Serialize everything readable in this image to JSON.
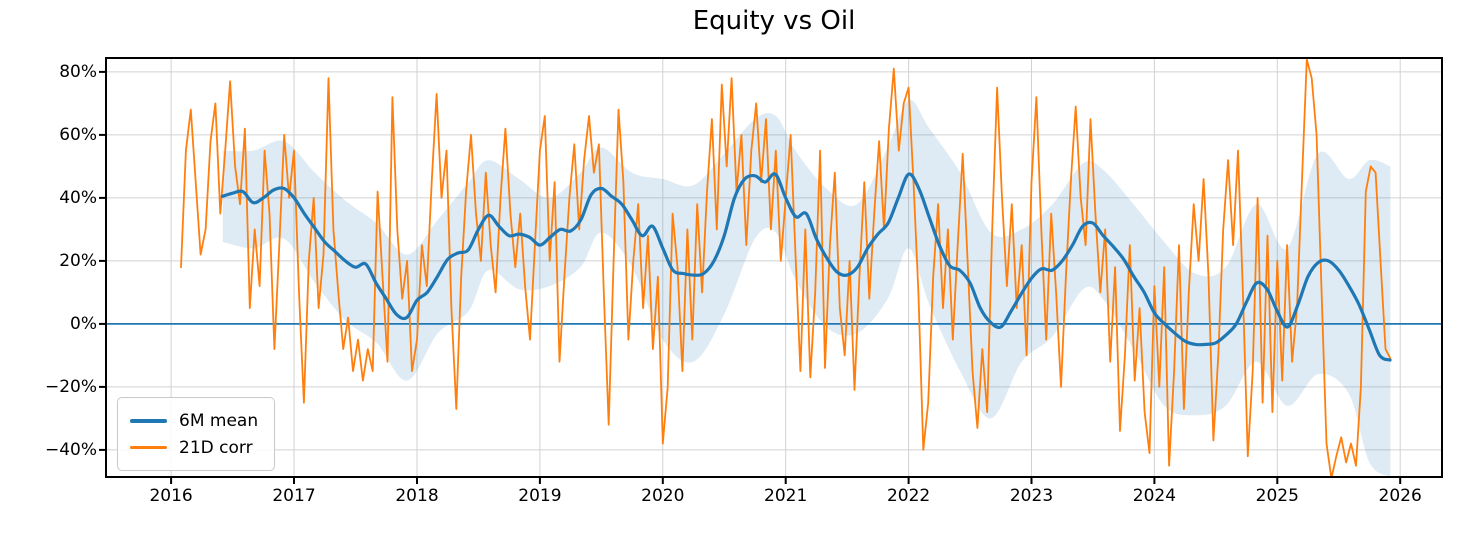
{
  "title": "Equity vs Oil",
  "legend": {
    "entries": [
      {
        "label": "6M mean",
        "color": "#1f77b4",
        "thickness": 4
      },
      {
        "label": "21D corr",
        "color": "#ff7f0e",
        "thickness": 3
      }
    ]
  },
  "axes": {
    "x_ticks": [
      {
        "value": 2016,
        "label": "2016"
      },
      {
        "value": 2017,
        "label": "2017"
      },
      {
        "value": 2018,
        "label": "2018"
      },
      {
        "value": 2019,
        "label": "2019"
      },
      {
        "value": 2020,
        "label": "2020"
      },
      {
        "value": 2021,
        "label": "2021"
      },
      {
        "value": 2022,
        "label": "2022"
      },
      {
        "value": 2023,
        "label": "2023"
      },
      {
        "value": 2024,
        "label": "2024"
      },
      {
        "value": 2025,
        "label": "2025"
      },
      {
        "value": 2026,
        "label": "2026"
      }
    ],
    "y_ticks": [
      {
        "value": 80,
        "label": "80%"
      },
      {
        "value": 60,
        "label": "60%"
      },
      {
        "value": 40,
        "label": "40%"
      },
      {
        "value": 20,
        "label": "20%"
      },
      {
        "value": 0,
        "label": "0%"
      },
      {
        "value": -20,
        "label": "−20%"
      },
      {
        "value": -40,
        "label": "−40%"
      }
    ],
    "grid_color": "#d2d2d2",
    "spine_color": "#000000"
  },
  "chart_data": {
    "type": "line",
    "title": "Equity vs Oil",
    "xlabel": "",
    "ylabel": "",
    "x_unit": "decimal_year",
    "y_unit": "percent",
    "xlim": [
      2015.47,
      2026.34
    ],
    "ylim": [
      -48.6,
      84.4
    ],
    "grid": true,
    "legend_position": "lower left",
    "zero_line": {
      "y": 0,
      "color": "#1f77b4"
    },
    "series": [
      {
        "name": "6M mean",
        "color": "#1f77b4",
        "x_start": 2016.4167,
        "x_step": 0.083333,
        "values": [
          40.5,
          41.5,
          42,
          38.5,
          40,
          42.5,
          43,
          40,
          35,
          30.5,
          26,
          23,
          20,
          18,
          19,
          13,
          8,
          3,
          2,
          7.5,
          10,
          15,
          20.5,
          22.5,
          23.5,
          30,
          34.5,
          31,
          28,
          28.5,
          27.5,
          25,
          27.5,
          30,
          29.5,
          33,
          41,
          43,
          40.5,
          38,
          33,
          28,
          31,
          24,
          17,
          16,
          15.5,
          16,
          20,
          28,
          40,
          46,
          47,
          45,
          47.5,
          40,
          34,
          35,
          27,
          21,
          16.5,
          15.5,
          18,
          24,
          28.5,
          32,
          40,
          47.5,
          43,
          34,
          25,
          18.5,
          17,
          13,
          5,
          0.5,
          -1,
          4,
          9.5,
          14.5,
          17.5,
          17,
          20,
          25,
          31,
          32,
          28,
          24.5,
          20.5,
          15,
          10,
          3.5,
          0,
          -3,
          -5.5,
          -6.5,
          -6.5,
          -6,
          -3.5,
          0,
          7,
          13,
          11,
          4,
          -1,
          6,
          15,
          19.5,
          20,
          17,
          12,
          6,
          -2,
          -10,
          -11.5
        ]
      },
      {
        "name": "21D corr",
        "color": "#ff7f0e",
        "x_start": 2016.08,
        "x_step": 0.04,
        "values": [
          18,
          55,
          68,
          45,
          22,
          30,
          58,
          70,
          35,
          55,
          77,
          50,
          38,
          62,
          5,
          30,
          12,
          55,
          35,
          -8,
          25,
          60,
          40,
          55,
          10,
          -25,
          20,
          40,
          5,
          22,
          78,
          30,
          10,
          -8,
          2,
          -15,
          -5,
          -18,
          -8,
          -15,
          42,
          15,
          -12,
          72,
          30,
          8,
          20,
          -15,
          -5,
          25,
          12,
          45,
          73,
          40,
          55,
          5,
          -27,
          15,
          42,
          60,
          35,
          20,
          48,
          25,
          10,
          40,
          62,
          35,
          18,
          35,
          12,
          -5,
          25,
          55,
          66,
          20,
          45,
          -12,
          15,
          40,
          57,
          30,
          52,
          66,
          48,
          57,
          10,
          -32,
          20,
          68,
          45,
          -5,
          20,
          38,
          5,
          28,
          -8,
          15,
          -38,
          -20,
          35,
          18,
          -15,
          30,
          -5,
          38,
          10,
          42,
          65,
          30,
          76,
          50,
          78,
          42,
          60,
          25,
          55,
          70,
          45,
          65,
          30,
          55,
          20,
          40,
          60,
          22,
          -15,
          30,
          -17,
          10,
          55,
          -14,
          25,
          48,
          5,
          -10,
          20,
          -21,
          15,
          45,
          8,
          35,
          58,
          30,
          62,
          81,
          55,
          70,
          75,
          45,
          10,
          -40,
          -25,
          15,
          38,
          5,
          30,
          -5,
          25,
          54,
          20,
          -15,
          -33,
          -8,
          -28,
          30,
          75,
          40,
          12,
          38,
          5,
          25,
          -10,
          45,
          72,
          30,
          -5,
          35,
          10,
          -20,
          15,
          45,
          69,
          40,
          25,
          65,
          35,
          10,
          30,
          -12,
          18,
          -34,
          -10,
          25,
          -18,
          5,
          -28,
          -41,
          12,
          -20,
          18,
          -45,
          -15,
          25,
          -27,
          10,
          38,
          20,
          46,
          15,
          -37,
          -10,
          30,
          52,
          25,
          55,
          10,
          -42,
          -15,
          40,
          -25,
          28,
          -28,
          20,
          -18,
          25,
          -12,
          5,
          45,
          84,
          78,
          60,
          10,
          -38,
          -49,
          -42,
          -36,
          -44,
          -38,
          -45,
          -20,
          42,
          50,
          48,
          20,
          -8,
          -11
        ]
      }
    ],
    "band": {
      "name": "6M mean ± band",
      "color": "rgba(31,119,180,0.15)",
      "x": [
        2016.42,
        2016.67,
        2016.92,
        2017.17,
        2017.42,
        2017.67,
        2017.92,
        2018.17,
        2018.42,
        2018.58,
        2018.83,
        2019.08,
        2019.33,
        2019.5,
        2019.75,
        2020.0,
        2020.25,
        2020.5,
        2020.75,
        2020.92,
        2021.08,
        2021.33,
        2021.58,
        2021.83,
        2022.0,
        2022.17,
        2022.42,
        2022.67,
        2022.92,
        2023.17,
        2023.42,
        2023.58,
        2023.83,
        2024.08,
        2024.33,
        2024.58,
        2024.83,
        2025.08,
        2025.33,
        2025.58,
        2025.75,
        2025.92
      ],
      "upper": [
        55,
        55,
        58,
        48,
        39,
        32,
        22,
        33,
        45,
        52,
        46,
        40,
        48,
        56,
        48,
        46,
        44,
        54,
        65,
        66,
        55,
        43,
        38,
        56,
        71,
        62,
        48,
        29,
        30,
        38,
        51,
        49,
        38,
        26,
        16,
        18,
        38,
        24,
        54,
        46,
        52,
        50
      ],
      "lower": [
        26,
        24,
        27,
        13,
        1,
        -6,
        -18,
        -3,
        4,
        17,
        11,
        12,
        18,
        29,
        18,
        -5,
        -12,
        3,
        27,
        29,
        14,
        -1,
        -3,
        8,
        24,
        6,
        -15,
        -30,
        -12,
        -4,
        11,
        8,
        -8,
        -26,
        -29,
        -26,
        -12,
        -26,
        -16,
        -22,
        -44,
        -48.5
      ]
    }
  }
}
